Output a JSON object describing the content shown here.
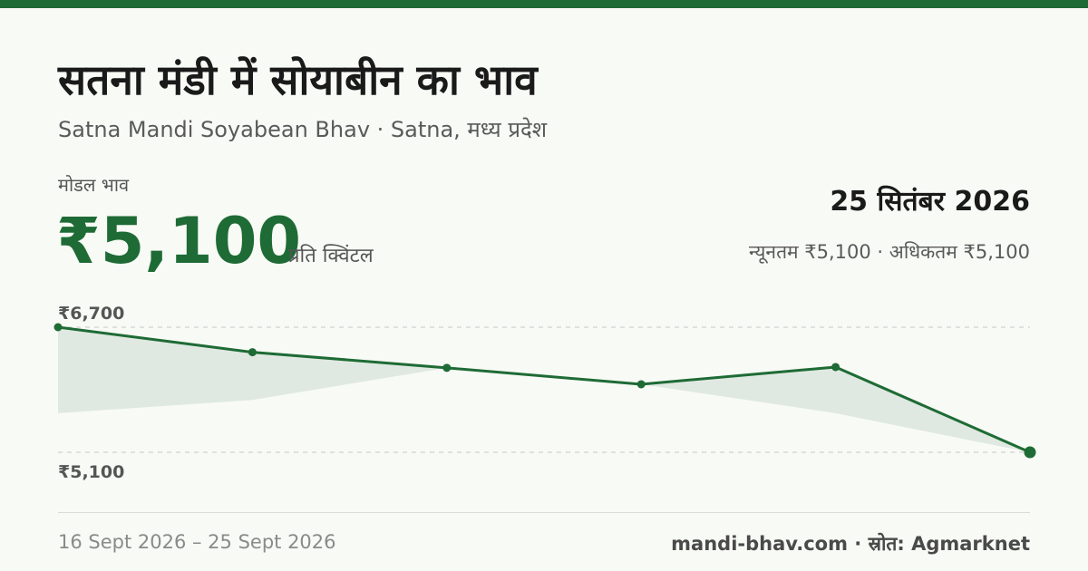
{
  "title": "सतना मंडी में सोयाबीन का भाव",
  "subtitle": "Satna Mandi Soyabean Bhav · Satna, मध्य प्रदेश",
  "modal_label": "मोडल भाव",
  "modal_price": "₹5,100",
  "unit": "प्रति क्विंटल",
  "date": "25 सितंबर 2026",
  "minmax": "न्यूनतम ₹5,100 · अधिकतम ₹5,100",
  "date_range": "16 Sept 2026 – 25 Sept 2026",
  "footer": "mandi-bhav.com · स्रोत: Agmarknet",
  "colors": {
    "accent": "#1e6b35",
    "band": "#dfe9e1",
    "grid": "#c8c8c8"
  },
  "chart_data": {
    "type": "line",
    "ylim": [
      5100,
      6700
    ],
    "y_tick_labels": [
      "₹6,700",
      "₹5,100"
    ],
    "series": [
      {
        "values": [
          6700,
          6380,
          6180,
          5970,
          6190,
          5100
        ]
      }
    ],
    "band_lower": [
      5600,
      5770,
      6180,
      5970,
      5600,
      5100
    ],
    "grid": true
  }
}
